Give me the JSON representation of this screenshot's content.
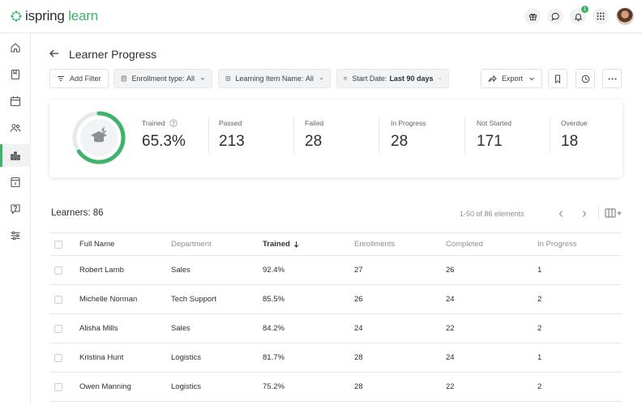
{
  "app": {
    "logo_left": "ispring",
    "logo_right": "learn",
    "brand_color": "#3db36b",
    "notification_count": "1"
  },
  "top_icons": [
    "gift-icon",
    "chat-icon",
    "bell-icon",
    "apps-grid-icon"
  ],
  "sidebar": {
    "items": [
      "home-icon",
      "book-icon",
      "calendar-icon",
      "users-icon",
      "chart-bar-icon",
      "report-icon",
      "help-box-icon",
      "sliders-icon"
    ],
    "active_index": 4
  },
  "page": {
    "title": "Learner Progress"
  },
  "filters": {
    "add_filter": "Add Filter",
    "enrollment_label": "Enrollment type:",
    "enrollment_value": "All",
    "item_label": "Learning Item Name:",
    "item_value": "All",
    "date_label": "Start Date:",
    "date_value": "Last 90 days",
    "export": "Export"
  },
  "stats": {
    "trained_fraction": 0.653,
    "trained": {
      "label": "Trained",
      "value": "65.3%"
    },
    "passed": {
      "label": "Passed",
      "value": "213"
    },
    "failed": {
      "label": "Failed",
      "value": "28"
    },
    "in_progress": {
      "label": "In Progress",
      "value": "28"
    },
    "not_started": {
      "label": "Not Started",
      "value": "171"
    },
    "overdue": {
      "label": "Overdue",
      "value": "18"
    }
  },
  "learners": {
    "title": "Learners: 86",
    "pager": "1-50 of 86 elements"
  },
  "table": {
    "columns": [
      "Full Name",
      "Department",
      "Trained",
      "Enrollments",
      "Completed",
      "In Progress"
    ],
    "rows": [
      [
        "Robert Lamb",
        "Sales",
        "92.4%",
        "27",
        "26",
        "1"
      ],
      [
        "Michelle Norman",
        "Tech Support",
        "85.5%",
        "26",
        "24",
        "2"
      ],
      [
        "Alisha Mills",
        "Sales",
        "84.2%",
        "24",
        "22",
        "2"
      ],
      [
        "Kristina Hunt",
        "Logistics",
        "81.7%",
        "28",
        "24",
        "1"
      ],
      [
        "Owen Manning",
        "Logistics",
        "75.2%",
        "28",
        "22",
        "2"
      ]
    ]
  }
}
